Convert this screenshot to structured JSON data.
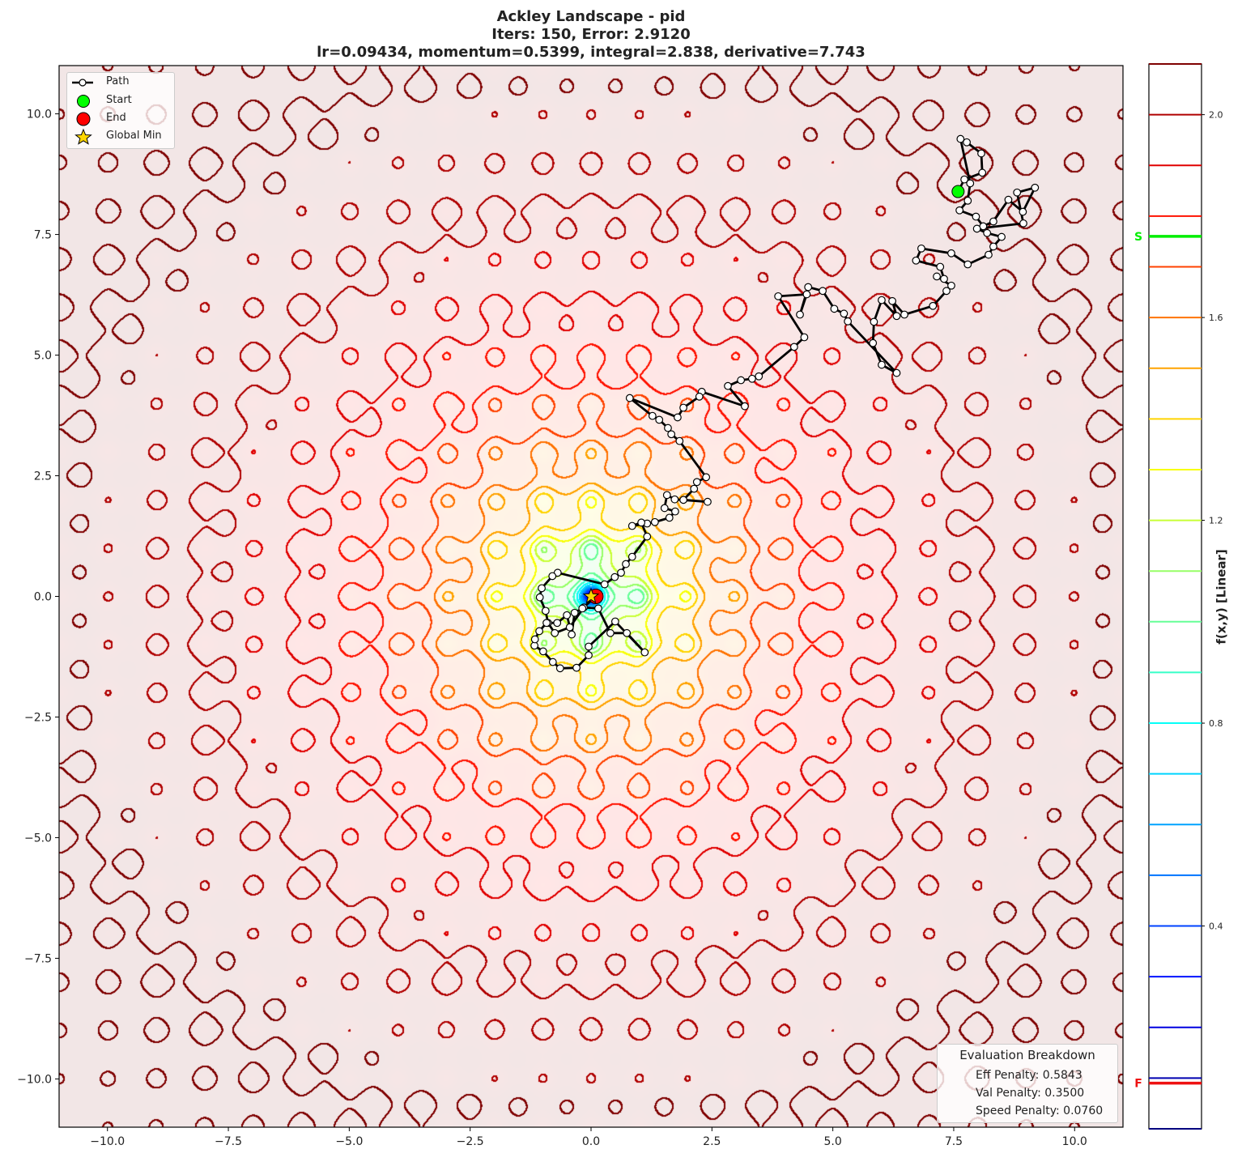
{
  "chart_data": {
    "type": "contour",
    "title": [
      "Ackley Landscape - pid",
      "Iters: 150, Error: 2.9120",
      "lr=0.09434, momentum=0.5399, integral=2.838, derivative=7.743"
    ],
    "xlim": [
      -11,
      11
    ],
    "ylim": [
      -11,
      11
    ],
    "x_ticks": [
      -10,
      -7.5,
      -5,
      -2.5,
      0,
      2.5,
      5,
      7.5,
      10
    ],
    "x_tick_labels": [
      "−10.0",
      "−7.5",
      "−5.0",
      "−2.5",
      "0.0",
      "2.5",
      "5.0",
      "7.5",
      "10.0"
    ],
    "y_ticks": [
      10,
      7.5,
      5,
      2.5,
      0,
      -2.5,
      -5,
      -7.5,
      -10
    ],
    "y_tick_labels": [
      "10.0",
      "7.5",
      "5.0",
      "2.5",
      "0.0",
      "−2.5",
      "−5.0",
      "−7.5",
      "−10.0"
    ],
    "colormap": "jet",
    "contour_level_step": 0.1,
    "colorbar": {
      "label": "f(x,y) [Linear]",
      "range": [
        0,
        2.1
      ],
      "ticks": [
        0.4,
        0.8,
        1.2,
        1.6,
        2.0
      ],
      "tick_labels": [
        "0.4",
        "0.8",
        "1.2",
        "1.6",
        "2.0"
      ],
      "markers": [
        {
          "label": "S",
          "value": 1.76,
          "color": "#00ee00"
        },
        {
          "label": "F",
          "value": 0.09,
          "color": "#ee1111"
        }
      ]
    },
    "legend": {
      "placement": "top-left",
      "entries": [
        {
          "label": "Path",
          "marker": "line-with-open-circle",
          "color": "#000000"
        },
        {
          "label": "Start",
          "marker": "circle",
          "color": "#00ff00"
        },
        {
          "label": "End",
          "marker": "circle",
          "color": "#ff0000"
        },
        {
          "label": "Global Min",
          "marker": "star",
          "color": "#ffd700"
        }
      ]
    },
    "start": [
      7.59,
      8.39
    ],
    "end": [
      0.1,
      0.0
    ],
    "global_min": [
      0,
      0
    ],
    "path": [
      [
        7.59,
        8.39
      ],
      [
        7.72,
        8.64
      ],
      [
        8.09,
        8.78
      ],
      [
        8.07,
        9.18
      ],
      [
        7.77,
        9.41
      ],
      [
        7.64,
        9.48
      ],
      [
        7.84,
        8.56
      ],
      [
        7.79,
        8.2
      ],
      [
        7.62,
        8.0
      ],
      [
        7.96,
        7.87
      ],
      [
        8.11,
        7.67
      ],
      [
        8.32,
        7.77
      ],
      [
        8.63,
        8.22
      ],
      [
        8.93,
        7.97
      ],
      [
        9.18,
        8.47
      ],
      [
        8.81,
        8.37
      ],
      [
        8.94,
        7.73
      ],
      [
        7.98,
        7.62
      ],
      [
        8.19,
        7.53
      ],
      [
        8.49,
        7.45
      ],
      [
        8.32,
        7.25
      ],
      [
        8.22,
        7.08
      ],
      [
        7.79,
        6.88
      ],
      [
        7.45,
        7.11
      ],
      [
        6.83,
        7.21
      ],
      [
        6.72,
        6.96
      ],
      [
        7.22,
        6.83
      ],
      [
        7.3,
        6.58
      ],
      [
        7.15,
        6.63
      ],
      [
        7.45,
        6.44
      ],
      [
        7.35,
        6.33
      ],
      [
        7.07,
        6.02
      ],
      [
        6.48,
        5.84
      ],
      [
        6.23,
        6.12
      ],
      [
        6.32,
        5.81
      ],
      [
        6.01,
        6.14
      ],
      [
        5.85,
        5.69
      ],
      [
        5.83,
        5.25
      ],
      [
        6.01,
        4.8
      ],
      [
        6.32,
        4.63
      ],
      [
        5.31,
        5.7
      ],
      [
        5.23,
        5.86
      ],
      [
        5.03,
        5.96
      ],
      [
        4.79,
        6.33
      ],
      [
        4.49,
        6.41
      ],
      [
        4.32,
        5.84
      ],
      [
        4.46,
        6.26
      ],
      [
        3.87,
        6.22
      ],
      [
        4.41,
        5.37
      ],
      [
        4.2,
        5.17
      ],
      [
        3.47,
        4.56
      ],
      [
        3.33,
        4.51
      ],
      [
        3.1,
        4.48
      ],
      [
        2.83,
        4.36
      ],
      [
        3.18,
        3.94
      ],
      [
        2.29,
        4.24
      ],
      [
        2.24,
        4.14
      ],
      [
        1.91,
        3.91
      ],
      [
        1.79,
        3.71
      ],
      [
        0.8,
        4.11
      ],
      [
        1.27,
        3.74
      ],
      [
        1.41,
        3.66
      ],
      [
        1.59,
        3.49
      ],
      [
        1.66,
        3.36
      ],
      [
        1.83,
        3.22
      ],
      [
        2.38,
        2.47
      ],
      [
        2.19,
        2.37
      ],
      [
        2.13,
        2.23
      ],
      [
        1.91,
        2.0
      ],
      [
        2.41,
        1.96
      ],
      [
        1.73,
        2.01
      ],
      [
        1.57,
        2.1
      ],
      [
        1.52,
        1.83
      ],
      [
        1.74,
        1.76
      ],
      [
        1.62,
        1.63
      ],
      [
        1.32,
        1.54
      ],
      [
        1.16,
        1.51
      ],
      [
        0.85,
        1.46
      ],
      [
        1.04,
        1.53
      ],
      [
        1.16,
        1.24
      ],
      [
        0.85,
        0.82
      ],
      [
        0.72,
        0.67
      ],
      [
        0.62,
        0.49
      ],
      [
        0.49,
        0.4
      ],
      [
        0.28,
        0.25
      ],
      [
        -0.69,
        0.49
      ],
      [
        -0.8,
        0.42
      ],
      [
        -1.02,
        0.17
      ],
      [
        -1.06,
        -0.02
      ],
      [
        -0.94,
        -0.3
      ],
      [
        -0.89,
        -0.55
      ],
      [
        -0.75,
        -0.76
      ],
      [
        -0.44,
        -0.64
      ],
      [
        -0.15,
        -0.23
      ],
      [
        0.15,
        -0.25
      ],
      [
        0.4,
        -0.76
      ],
      [
        0.74,
        -0.76
      ],
      [
        1.11,
        -1.16
      ],
      [
        0.5,
        -0.52
      ],
      [
        -0.05,
        -1.04
      ],
      [
        -0.05,
        -1.22
      ],
      [
        -0.3,
        -1.48
      ],
      [
        -0.64,
        -1.49
      ],
      [
        -0.79,
        -1.36
      ],
      [
        -0.99,
        -1.14
      ],
      [
        -1.17,
        -1.02
      ],
      [
        -1.16,
        -0.89
      ],
      [
        -1.07,
        -0.72
      ],
      [
        -0.92,
        -0.55
      ],
      [
        -0.7,
        -0.55
      ],
      [
        -0.5,
        -0.39
      ],
      [
        -0.4,
        -0.79
      ],
      [
        -0.34,
        -0.34
      ],
      [
        -0.18,
        -0.25
      ],
      [
        0.1,
        0.0
      ]
    ]
  },
  "evaluation": {
    "heading": "Evaluation Breakdown",
    "placement": "bottom-right",
    "rows": [
      "Eff Penalty: 0.5843",
      "Val Penalty: 0.3500",
      "Speed Penalty: 0.0760"
    ]
  }
}
